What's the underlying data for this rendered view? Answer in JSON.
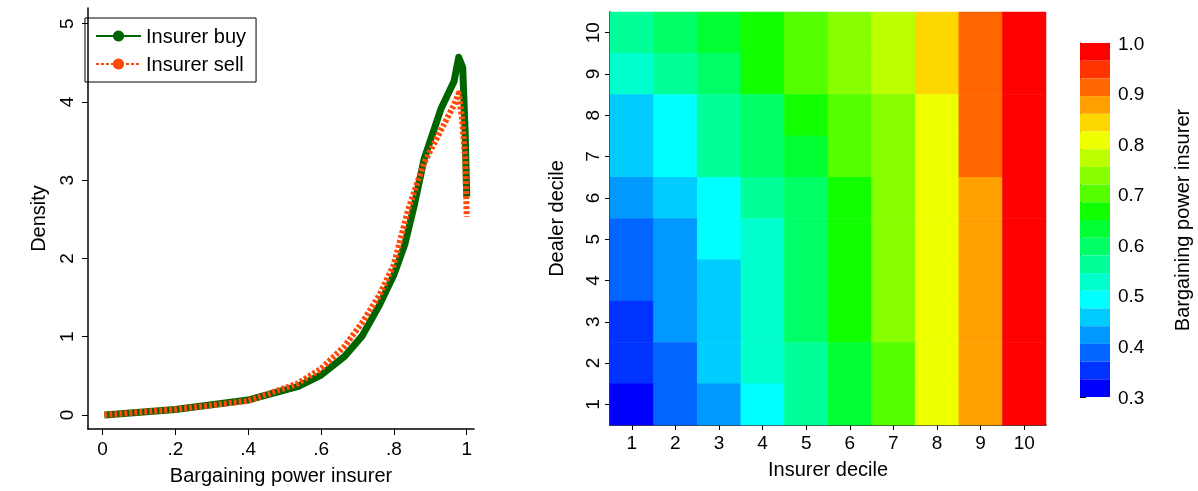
{
  "chart_data": [
    {
      "type": "line",
      "xlabel": "Bargaining power insurer",
      "ylabel": "Density",
      "legend": "top left",
      "xlim": [
        -0.04,
        1.02
      ],
      "ylim": [
        -0.18,
        5.2
      ],
      "xticks": [
        0,
        {
          "value": 0.2,
          "label": ".2"
        },
        {
          "value": 0.4,
          "label": ".4"
        },
        {
          "value": 0.6,
          "label": ".6"
        },
        {
          "value": 0.8,
          "label": ".8"
        },
        1
      ],
      "yticks": [
        0,
        1,
        2,
        3,
        4,
        5
      ],
      "grid": false,
      "marker": "none",
      "series": [
        {
          "name": "Insurer buy",
          "color": "#006400",
          "line_style": "solid",
          "x": [
            0.005,
            0.2,
            0.4,
            0.535,
            0.6,
            0.665,
            0.713,
            0.76,
            0.8,
            0.83,
            0.857,
            0.883,
            0.93,
            0.965,
            0.978,
            0.989,
            0.996,
            1.0
          ],
          "values": [
            0,
            0.07,
            0.19,
            0.36,
            0.51,
            0.75,
            1.01,
            1.4,
            1.79,
            2.18,
            2.7,
            3.27,
            3.92,
            4.26,
            4.57,
            4.44,
            3.57,
            2.79
          ]
        },
        {
          "name": "Insurer sell",
          "color": "#ff4a0a",
          "line_style": "dashed",
          "x": [
            0.005,
            0.2,
            0.4,
            0.535,
            0.6,
            0.665,
            0.713,
            0.76,
            0.8,
            0.839,
            0.883,
            0.926,
            0.965,
            0.978,
            0.987,
            0.996,
            1.0
          ],
          "values": [
            0,
            0.07,
            0.18,
            0.4,
            0.59,
            0.88,
            1.18,
            1.53,
            1.92,
            2.62,
            3.22,
            3.61,
            3.96,
            4.11,
            3.79,
            3.27,
            2.53
          ]
        }
      ]
    },
    {
      "type": "heatmap",
      "xlabel": "Insurer decile",
      "ylabel": "Dealer decile",
      "clabel": "Bargaining power insurer",
      "categories": [
        "1",
        "2",
        "3",
        "4",
        "5",
        "6",
        "7",
        "8",
        "9",
        "10"
      ],
      "y_categories": [
        "10",
        "9",
        "8",
        "7",
        "6",
        "5",
        "4",
        "3",
        "2",
        "1"
      ],
      "clim": [
        0.3,
        1.0
      ],
      "cticks": [
        {
          "value": 0.3,
          "label": "0.3"
        },
        {
          "value": 0.4,
          "label": "0.4"
        },
        {
          "value": 0.5,
          "label": "0.5"
        },
        {
          "value": 0.6,
          "label": "0.6"
        },
        {
          "value": 0.7,
          "label": "0.7"
        },
        {
          "value": 0.8,
          "label": "0.8"
        },
        {
          "value": 0.9,
          "label": "0.9"
        },
        {
          "value": 1.0,
          "label": "1.0"
        }
      ],
      "cells": [
        [
          0.56,
          0.58,
          0.63,
          0.67,
          0.71,
          0.74,
          0.78,
          0.83,
          0.91,
          0.98
        ],
        [
          0.53,
          0.55,
          0.61,
          0.65,
          0.69,
          0.73,
          0.77,
          0.83,
          0.91,
          0.97
        ],
        [
          0.46,
          0.48,
          0.55,
          0.6,
          0.65,
          0.7,
          0.75,
          0.8,
          0.9,
          0.97
        ],
        [
          0.45,
          0.49,
          0.55,
          0.6,
          0.64,
          0.7,
          0.74,
          0.81,
          0.9,
          0.97
        ],
        [
          0.42,
          0.45,
          0.5,
          0.55,
          0.61,
          0.67,
          0.73,
          0.8,
          0.89,
          0.97
        ],
        [
          0.38,
          0.43,
          0.48,
          0.54,
          0.6,
          0.66,
          0.72,
          0.8,
          0.89,
          0.97
        ],
        [
          0.38,
          0.42,
          0.47,
          0.53,
          0.59,
          0.65,
          0.72,
          0.79,
          0.89,
          0.97
        ],
        [
          0.35,
          0.41,
          0.46,
          0.52,
          0.58,
          0.65,
          0.72,
          0.79,
          0.89,
          0.97
        ],
        [
          0.34,
          0.39,
          0.45,
          0.51,
          0.57,
          0.64,
          0.71,
          0.79,
          0.89,
          0.97
        ],
        [
          0.31,
          0.37,
          0.43,
          0.5,
          0.56,
          0.64,
          0.71,
          0.79,
          0.88,
          0.97
        ]
      ]
    }
  ]
}
